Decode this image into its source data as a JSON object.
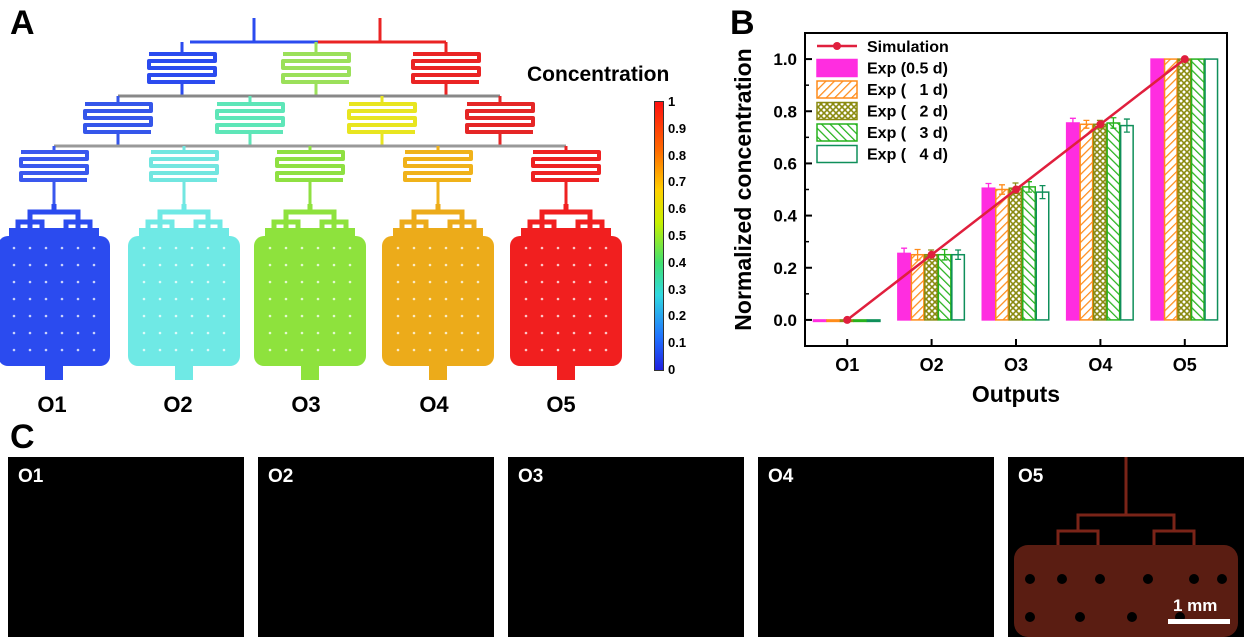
{
  "panel_labels": {
    "a": "A",
    "b": "B",
    "c": "C"
  },
  "panel_a": {
    "colorbar_title": "Concentration",
    "colorbar_ticks": [
      "1",
      "0.9",
      "0.8",
      "0.7",
      "0.6",
      "0.5",
      "0.4",
      "0.3",
      "0.2",
      "0.1",
      "0"
    ],
    "outputs": [
      {
        "label": "O1",
        "color": "#2b4bef"
      },
      {
        "label": "O2",
        "color": "#6fe9e5"
      },
      {
        "label": "O3",
        "color": "#8ee23d"
      },
      {
        "label": "O4",
        "color": "#ecab1a"
      },
      {
        "label": "O5",
        "color": "#f11f1f"
      }
    ],
    "mixer_colors": {
      "row1": [
        "#2b4bef",
        "#9be05a",
        "#ea2424"
      ],
      "row2": [
        "#3556ea",
        "#5ee6b8",
        "#e8e520",
        "#e52626"
      ],
      "row3": [
        "#3a58ee",
        "#72e6e0",
        "#8fe042",
        "#f0b21a",
        "#ee2222"
      ]
    }
  },
  "chart_data": {
    "type": "bar",
    "ylabel": "Normalized concentration",
    "xlabel": "Outputs",
    "categories": [
      "O1",
      "O2",
      "O3",
      "O4",
      "O5"
    ],
    "ylim": [
      -0.1,
      1.1
    ],
    "yticks": [
      "0.0",
      "0.2",
      "0.4",
      "0.6",
      "0.8",
      "1.0"
    ],
    "legend_position": "top-left",
    "simulation": {
      "name": "Simulation",
      "color": "#e01f3d",
      "values": [
        0.0,
        0.25,
        0.5,
        0.75,
        1.0
      ]
    },
    "series": [
      {
        "name": "Exp (0.5 d)",
        "color": "#ff2de0",
        "fill": "solid",
        "values": [
          0.0,
          0.255,
          0.505,
          0.755,
          1.0
        ],
        "errors": [
          0.0,
          0.02,
          0.018,
          0.018,
          0.0
        ]
      },
      {
        "name": "Exp (   1 d)",
        "color": "#ff8c1a",
        "fill": "hatch",
        "values": [
          0.0,
          0.25,
          0.5,
          0.75,
          1.0
        ],
        "errors": [
          0.0,
          0.02,
          0.018,
          0.015,
          0.0
        ]
      },
      {
        "name": "Exp (   2 d)",
        "color": "#8a8a10",
        "fill": "crosshatch",
        "values": [
          0.0,
          0.25,
          0.505,
          0.75,
          1.0
        ],
        "errors": [
          0.0,
          0.018,
          0.02,
          0.015,
          0.0
        ]
      },
      {
        "name": "Exp (   3 d)",
        "color": "#27b21d",
        "fill": "hatch",
        "values": [
          0.0,
          0.25,
          0.51,
          0.755,
          1.0
        ],
        "errors": [
          0.0,
          0.02,
          0.02,
          0.02,
          0.0
        ]
      },
      {
        "name": "Exp (   4 d)",
        "color": "#0f8f5a",
        "fill": "empty",
        "values": [
          0.0,
          0.25,
          0.49,
          0.745,
          1.0
        ],
        "errors": [
          0.0,
          0.018,
          0.025,
          0.025,
          0.0
        ]
      }
    ]
  },
  "panel_c": {
    "images": [
      {
        "label": "O1",
        "signal": "none"
      },
      {
        "label": "O2",
        "signal": "none"
      },
      {
        "label": "O3",
        "signal": "none"
      },
      {
        "label": "O4",
        "signal": "none"
      },
      {
        "label": "O5",
        "signal": "red"
      }
    ],
    "scale_bar": "1 mm"
  }
}
